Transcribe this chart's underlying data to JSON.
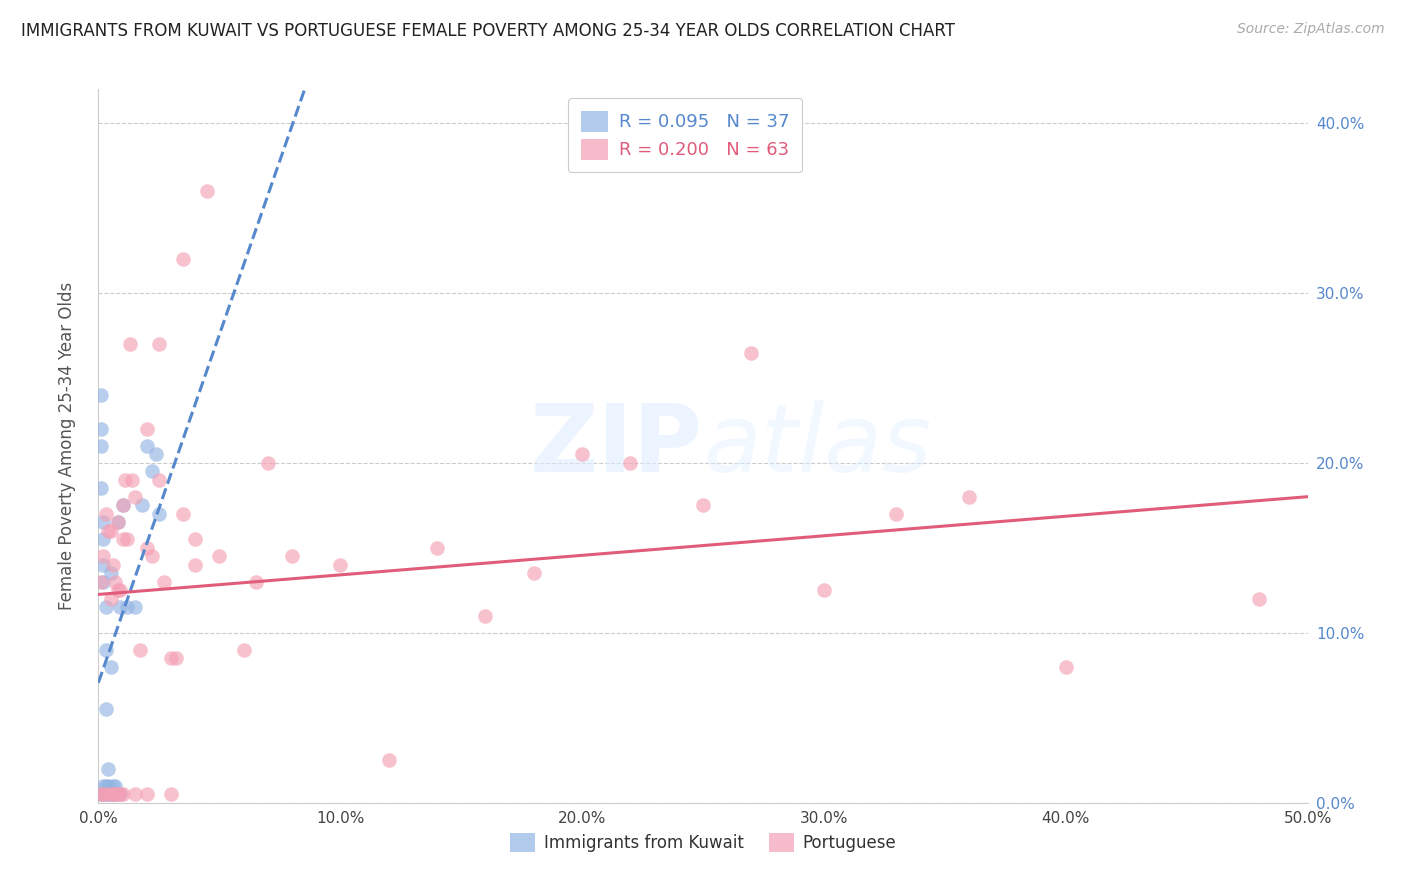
{
  "title": "IMMIGRANTS FROM KUWAIT VS PORTUGUESE FEMALE POVERTY AMONG 25-34 YEAR OLDS CORRELATION CHART",
  "source": "Source: ZipAtlas.com",
  "ylabel": "Female Poverty Among 25-34 Year Olds",
  "watermark": "ZIPAtlas",
  "xlim": [
    0.0,
    0.5
  ],
  "ylim": [
    0.0,
    0.42
  ],
  "xticks": [
    0.0,
    0.1,
    0.2,
    0.3,
    0.4,
    0.5
  ],
  "yticks": [
    0.0,
    0.1,
    0.2,
    0.3,
    0.4
  ],
  "kuwait_R": 0.095,
  "kuwait_N": 37,
  "portuguese_R": 0.2,
  "portuguese_N": 63,
  "kuwait_color": "#92b4e3",
  "portuguese_color": "#f4a0b5",
  "kuwait_line_color": "#5588cc",
  "portuguese_line_color": "#e05c7a",
  "grid_color": "#cccccc",
  "right_axis_color": "#5588cc",
  "kuwait_scatter_x": [
    0.001,
    0.001,
    0.001,
    0.001,
    0.001,
    0.002,
    0.002,
    0.002,
    0.002,
    0.002,
    0.002,
    0.003,
    0.003,
    0.003,
    0.003,
    0.003,
    0.004,
    0.004,
    0.004,
    0.005,
    0.005,
    0.005,
    0.006,
    0.006,
    0.007,
    0.007,
    0.008,
    0.009,
    0.009,
    0.01,
    0.012,
    0.015,
    0.018,
    0.02,
    0.022,
    0.024,
    0.025
  ],
  "kuwait_scatter_y": [
    0.005,
    0.21,
    0.22,
    0.185,
    0.24,
    0.005,
    0.01,
    0.13,
    0.14,
    0.155,
    0.165,
    0.005,
    0.01,
    0.055,
    0.09,
    0.115,
    0.005,
    0.01,
    0.02,
    0.005,
    0.08,
    0.135,
    0.005,
    0.01,
    0.005,
    0.01,
    0.165,
    0.005,
    0.115,
    0.175,
    0.115,
    0.115,
    0.175,
    0.21,
    0.195,
    0.205,
    0.17
  ],
  "portuguese_scatter_x": [
    0.001,
    0.001,
    0.002,
    0.002,
    0.003,
    0.003,
    0.004,
    0.005,
    0.005,
    0.005,
    0.006,
    0.006,
    0.007,
    0.007,
    0.008,
    0.008,
    0.008,
    0.009,
    0.009,
    0.01,
    0.01,
    0.01,
    0.011,
    0.012,
    0.013,
    0.014,
    0.015,
    0.015,
    0.017,
    0.02,
    0.02,
    0.02,
    0.022,
    0.025,
    0.025,
    0.027,
    0.03,
    0.03,
    0.032,
    0.035,
    0.035,
    0.04,
    0.04,
    0.045,
    0.05,
    0.06,
    0.065,
    0.07,
    0.08,
    0.1,
    0.12,
    0.14,
    0.16,
    0.18,
    0.2,
    0.22,
    0.25,
    0.27,
    0.3,
    0.33,
    0.36,
    0.4,
    0.48
  ],
  "portuguese_scatter_y": [
    0.005,
    0.13,
    0.005,
    0.145,
    0.005,
    0.17,
    0.16,
    0.005,
    0.12,
    0.16,
    0.005,
    0.14,
    0.005,
    0.13,
    0.005,
    0.125,
    0.165,
    0.005,
    0.125,
    0.005,
    0.155,
    0.175,
    0.19,
    0.155,
    0.27,
    0.19,
    0.005,
    0.18,
    0.09,
    0.005,
    0.15,
    0.22,
    0.145,
    0.19,
    0.27,
    0.13,
    0.005,
    0.085,
    0.085,
    0.17,
    0.32,
    0.14,
    0.155,
    0.36,
    0.145,
    0.09,
    0.13,
    0.2,
    0.145,
    0.14,
    0.025,
    0.15,
    0.11,
    0.135,
    0.205,
    0.2,
    0.175,
    0.265,
    0.125,
    0.17,
    0.18,
    0.08,
    0.12
  ]
}
